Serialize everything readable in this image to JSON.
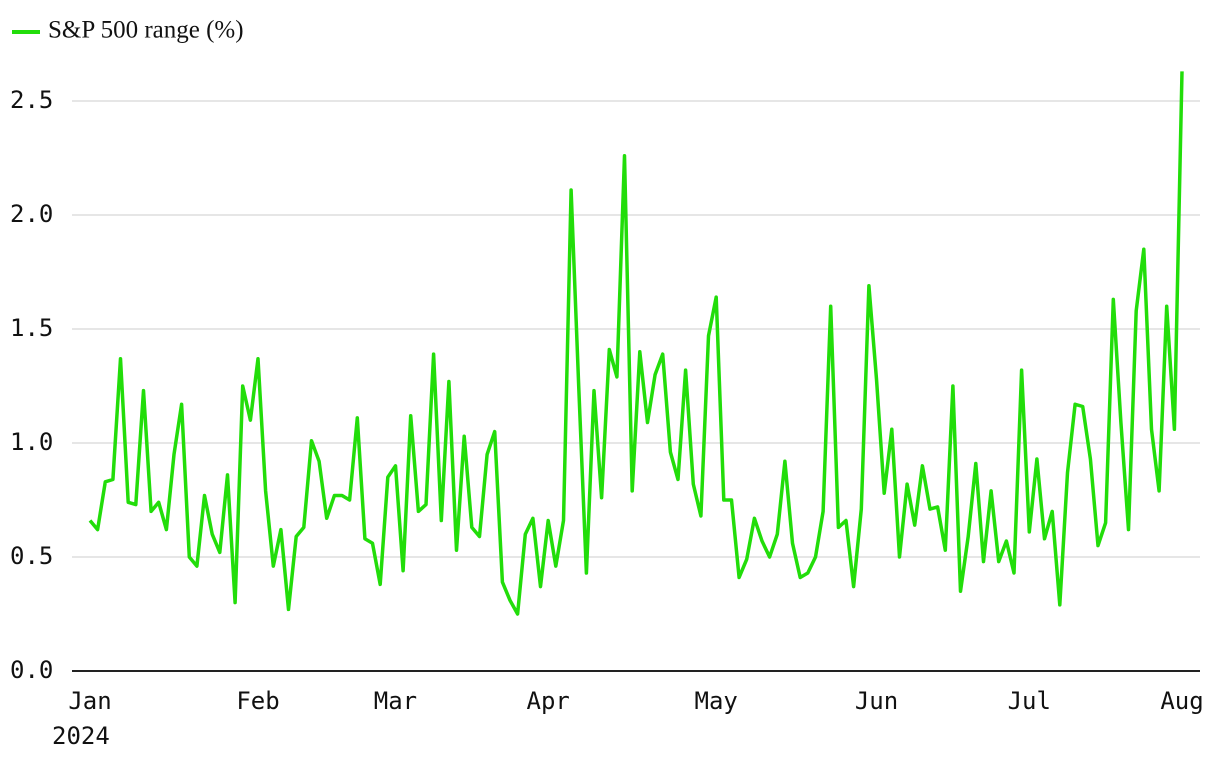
{
  "chart_data": {
    "type": "line",
    "legend_position": "top-left",
    "grid": true,
    "x_year": "2024",
    "ylim": [
      0,
      2.68
    ],
    "yticks": [
      {
        "value": 0,
        "label": "0.0"
      },
      0.5,
      {
        "value": 1,
        "label": "1.0"
      },
      1.5,
      {
        "value": 2,
        "label": "2.0"
      },
      2.5
    ],
    "categories": [
      "Jan",
      null,
      null,
      null,
      null,
      null,
      null,
      null,
      null,
      null,
      null,
      null,
      null,
      null,
      null,
      null,
      null,
      null,
      null,
      null,
      null,
      null,
      "Feb",
      null,
      null,
      null,
      null,
      null,
      null,
      null,
      null,
      null,
      null,
      null,
      null,
      null,
      null,
      null,
      null,
      null,
      "Mar",
      null,
      null,
      null,
      null,
      null,
      null,
      null,
      null,
      null,
      null,
      null,
      null,
      null,
      null,
      null,
      null,
      null,
      null,
      null,
      "Apr",
      null,
      null,
      null,
      null,
      null,
      null,
      null,
      null,
      null,
      null,
      null,
      null,
      null,
      null,
      null,
      null,
      null,
      null,
      null,
      null,
      null,
      "May",
      null,
      null,
      null,
      null,
      null,
      null,
      null,
      null,
      null,
      null,
      null,
      null,
      null,
      null,
      null,
      null,
      null,
      null,
      null,
      null,
      "Jun",
      null,
      null,
      null,
      null,
      null,
      null,
      null,
      null,
      null,
      null,
      null,
      null,
      null,
      null,
      null,
      null,
      null,
      null,
      null,
      "Jul",
      null,
      null,
      null,
      null,
      null,
      null,
      null,
      null,
      null,
      null,
      null,
      null,
      null,
      null,
      null,
      null,
      null,
      null,
      null,
      "Aug"
    ],
    "series": [
      {
        "name": "S&P 500 range (%)",
        "color": "#22dd0a",
        "values": [
          0.66,
          0.62,
          0.83,
          0.84,
          1.37,
          0.74,
          0.73,
          1.23,
          0.7,
          0.74,
          0.62,
          0.95,
          1.17,
          0.5,
          0.46,
          0.77,
          0.6,
          0.52,
          0.86,
          0.3,
          1.25,
          1.1,
          1.37,
          0.79,
          0.46,
          0.62,
          0.27,
          0.59,
          0.63,
          1.01,
          0.92,
          0.67,
          0.77,
          0.77,
          0.75,
          1.11,
          0.58,
          0.56,
          0.38,
          0.85,
          0.9,
          0.44,
          1.12,
          0.7,
          0.73,
          1.39,
          0.66,
          1.27,
          0.53,
          1.03,
          0.63,
          0.59,
          0.95,
          1.05,
          0.39,
          0.31,
          0.25,
          0.6,
          0.67,
          0.37,
          0.66,
          0.46,
          0.66,
          2.11,
          1.25,
          0.43,
          1.23,
          0.76,
          1.41,
          1.29,
          2.26,
          0.79,
          1.4,
          1.09,
          1.3,
          1.39,
          0.96,
          0.84,
          1.32,
          0.82,
          0.68,
          1.47,
          1.64,
          0.75,
          0.75,
          0.41,
          0.49,
          0.67,
          0.57,
          0.5,
          0.6,
          0.92,
          0.56,
          0.41,
          0.43,
          0.5,
          0.7,
          1.6,
          0.63,
          0.66,
          0.37,
          0.71,
          1.69,
          1.28,
          0.78,
          1.06,
          0.5,
          0.82,
          0.64,
          0.9,
          0.71,
          0.72,
          0.53,
          1.25,
          0.35,
          0.59,
          0.91,
          0.48,
          0.79,
          0.48,
          0.57,
          0.43,
          1.32,
          0.61,
          0.93,
          0.58,
          0.7,
          0.29,
          0.87,
          1.17,
          1.16,
          0.93,
          0.55,
          0.65,
          1.63,
          1.09,
          0.62,
          1.58,
          1.85,
          1.06,
          0.79,
          1.6,
          1.06,
          2.63
        ]
      }
    ]
  }
}
